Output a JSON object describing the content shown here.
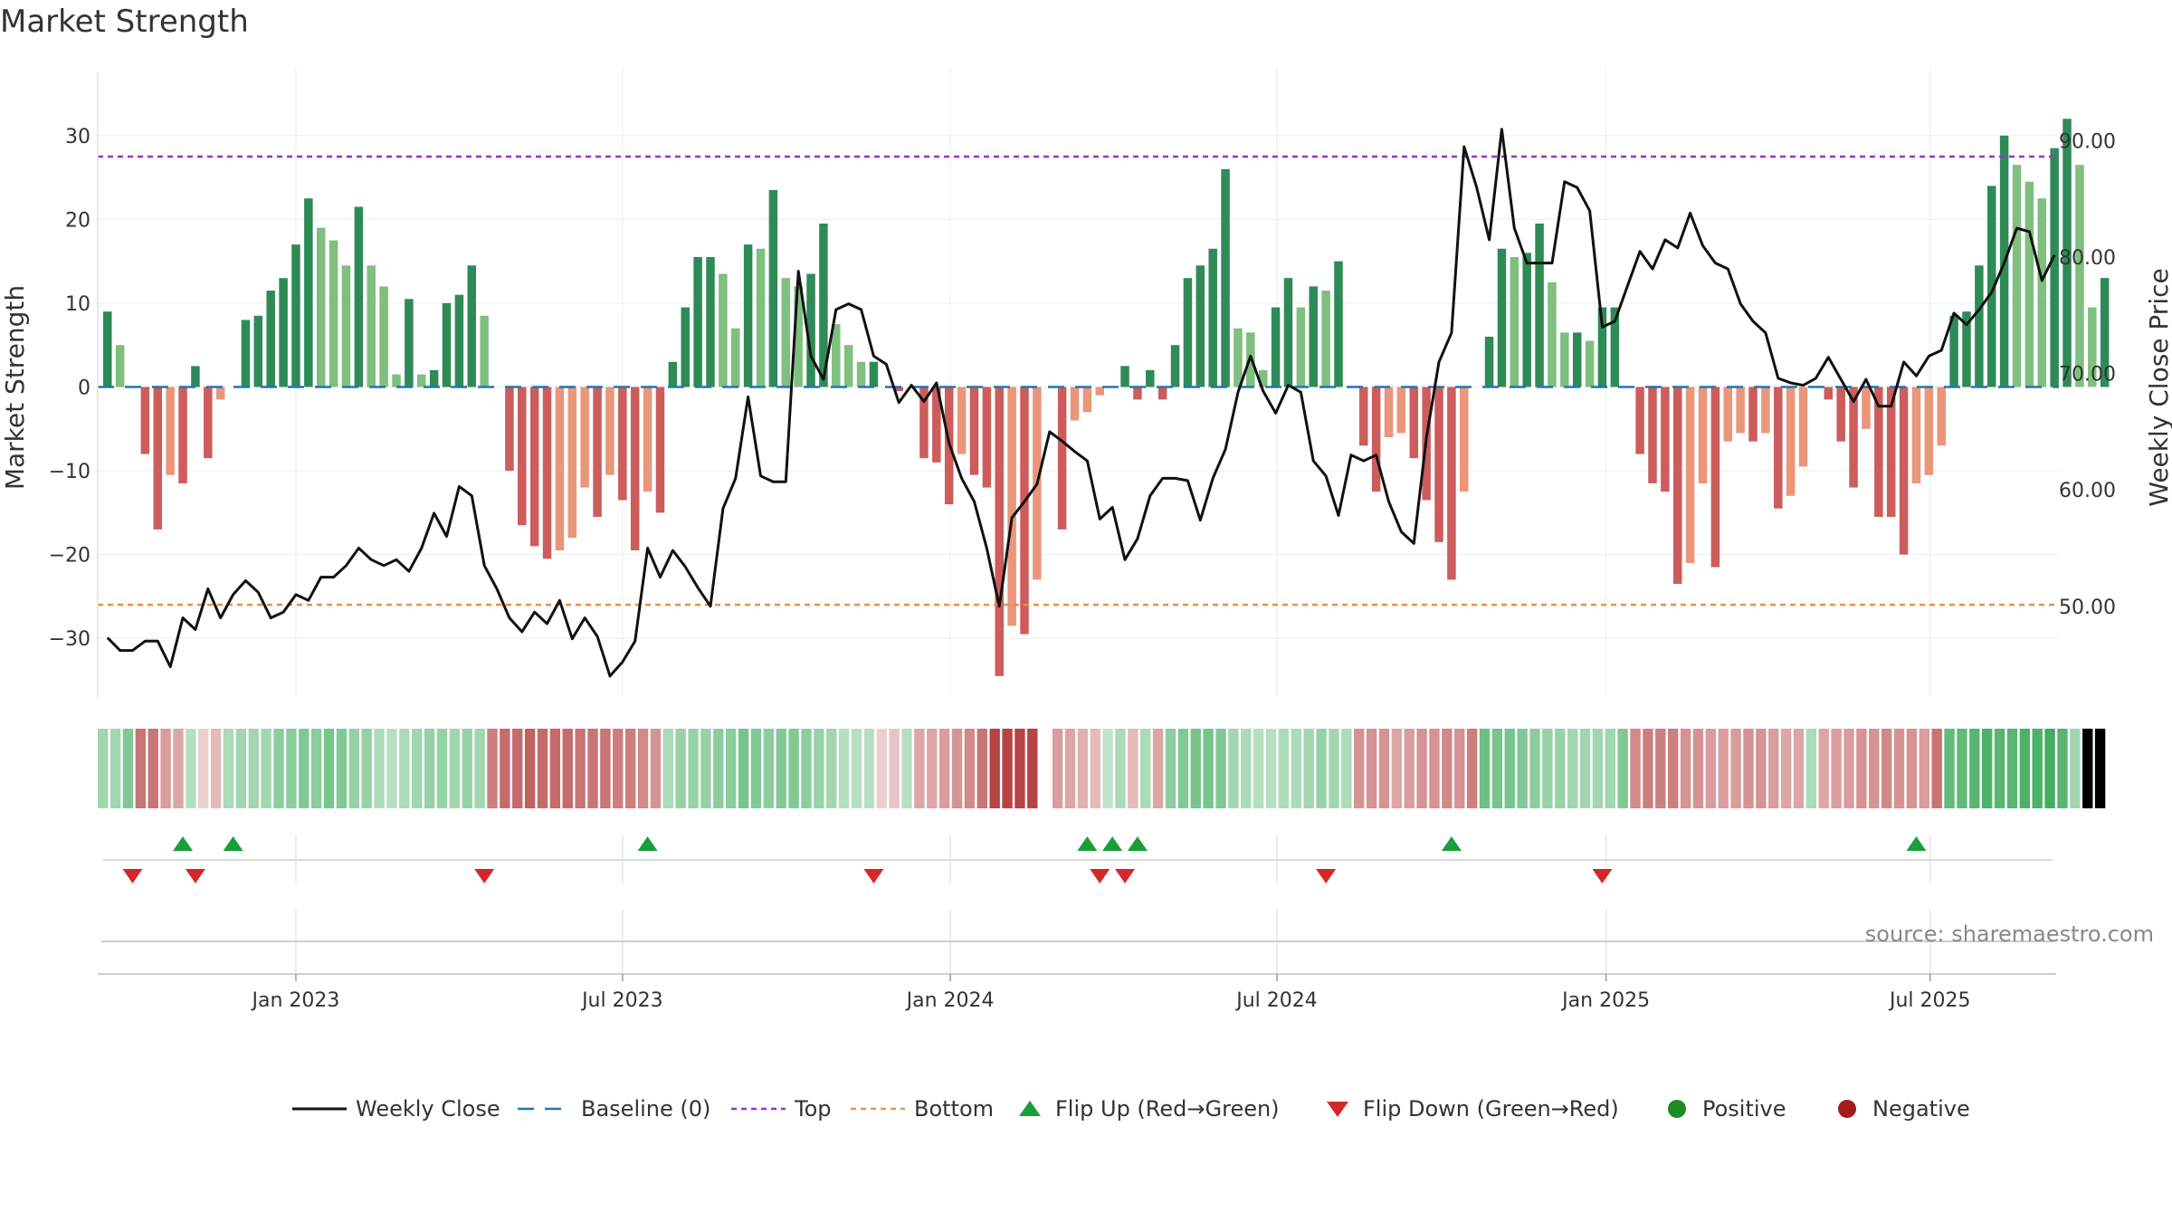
{
  "title": "Market Strength",
  "source": "source: sharemaestro.com",
  "colors": {
    "pos_strong": "#2e8b57",
    "pos_weak": "#7fbf7f",
    "neg_strong": "#cd5c5c",
    "neg_weak": "#e9967a",
    "line": "#111111",
    "baseline": "#1f77b4",
    "top": "#9932cc",
    "bottom": "#e8924a",
    "flip_up": "#1a9e3a",
    "flip_down": "#d62728",
    "positive": "#1e8c24",
    "negative": "#a31c1c"
  },
  "chart_data": {
    "type": "bar",
    "title": "Market Strength",
    "ylabel": "Market Strength",
    "y2label": "Weekly Close Price",
    "ylim": [
      -37,
      37
    ],
    "y2lim": [
      42.2,
      95.5
    ],
    "yticks": [
      -30,
      -20,
      -10,
      0,
      10,
      20,
      30
    ],
    "yticklabels": [
      "−30",
      "−20",
      "−10",
      "0",
      "10",
      "20",
      "30"
    ],
    "y2ticks": [
      50,
      60,
      70,
      80,
      90
    ],
    "y2ticklabels": [
      "50.00",
      "60.00",
      "70.00",
      "80.00",
      "90.00"
    ],
    "top_level": 27.5,
    "bottom_level": -26,
    "x_start_week": 0,
    "xticks": [
      {
        "label": "Jan 2023",
        "week": 15
      },
      {
        "label": "Jul 2023",
        "week": 41
      },
      {
        "label": "Jan 2024",
        "week": 67.1
      },
      {
        "label": "Jul 2024",
        "week": 93.1
      },
      {
        "label": "Jan 2025",
        "week": 119.3
      },
      {
        "label": "Jul 2025",
        "week": 145.1
      }
    ],
    "strength": [
      9,
      5,
      0,
      -8,
      -17,
      -10.5,
      -11.5,
      2.5,
      -8.5,
      -1.5,
      0,
      8,
      8.5,
      11.5,
      13,
      17,
      22.5,
      19,
      17.5,
      14.5,
      21.5,
      14.5,
      12,
      1.5,
      10.5,
      1.5,
      2,
      10,
      11,
      14.5,
      8.5,
      0,
      -10,
      -16.5,
      -19,
      -20.5,
      -19.5,
      -18,
      -12,
      -15.5,
      -10.5,
      -13.5,
      -19.5,
      -12.5,
      -15,
      3,
      9.5,
      15.5,
      15.5,
      13.5,
      7,
      17,
      16.5,
      23.5,
      13,
      12,
      13.5,
      19.5,
      7.5,
      5,
      3,
      3,
      0,
      -0.5,
      0,
      -8.5,
      -9,
      -14,
      -8,
      -10.5,
      -12,
      -34.5,
      -28.5,
      -29.5,
      -23,
      0,
      -17,
      -4,
      -3,
      -1,
      0,
      2.5,
      -1.5,
      2,
      -1.5,
      5,
      13,
      14.5,
      16.5,
      26,
      7,
      6.5,
      2,
      9.5,
      13,
      9.5,
      12,
      11.5,
      15,
      0,
      -7,
      -12.5,
      -6,
      -5.5,
      -8.5,
      -13.5,
      -18.5,
      -23,
      -12.5,
      0,
      6,
      16.5,
      15.5,
      16,
      19.5,
      12.5,
      6.5,
      6.5,
      5.5,
      9.5,
      9.5,
      0,
      -8,
      -11.5,
      -12.5,
      -23.5,
      -21,
      -11.5,
      -21.5,
      -6.5,
      -5.5,
      -6.5,
      -5.5,
      -14.5,
      -13,
      -9.5,
      0,
      -1.5,
      -6.5,
      -12,
      -5,
      -15.5,
      -15.5,
      -20,
      -11.5,
      -10.5,
      -7,
      8.5,
      9,
      14.5,
      24,
      30,
      26.5,
      24.5,
      22.5,
      28.5,
      32,
      26.5,
      9.5,
      13
    ],
    "weekly_close": [
      47.3,
      46.2,
      46.2,
      47.0,
      47.0,
      44.8,
      49.0,
      48.0,
      51.5,
      49.0,
      51.0,
      52.2,
      51.2,
      49.0,
      49.5,
      51.0,
      50.5,
      52.5,
      52.5,
      53.5,
      55.0,
      54.0,
      53.5,
      54.0,
      53.0,
      55.0,
      58.0,
      56.0,
      60.3,
      59.5,
      53.5,
      51.5,
      49.0,
      47.8,
      49.5,
      48.5,
      50.5,
      47.2,
      49.0,
      47.4,
      44.0,
      45.2,
      47.0,
      55.0,
      52.5,
      54.8,
      53.4,
      51.6,
      50.0,
      58.4,
      61.0,
      68.0,
      61.2,
      60.7,
      60.7,
      78.8,
      71.5,
      69.5,
      75.5,
      76.0,
      75.5,
      71.5,
      70.8,
      67.5,
      69.0,
      67.6,
      69.2,
      64.0,
      61.0,
      59.0,
      55.0,
      50.0,
      57.6,
      59.0,
      60.5,
      65.0,
      64.2,
      63.3,
      62.5,
      57.5,
      58.5,
      54.0,
      55.8,
      59.5,
      61.0,
      61.0,
      60.8,
      57.4,
      61.0,
      63.5,
      68.4,
      71.5,
      68.5,
      66.6,
      69.0,
      68.4,
      62.5,
      61.2,
      57.8,
      63.0,
      62.5,
      63.0,
      59.0,
      56.4,
      55.4,
      64.5,
      71.0,
      73.5,
      89.5,
      86.0,
      81.5,
      91.0,
      82.5,
      79.5,
      79.5,
      79.5,
      86.5,
      86.0,
      84.0,
      74.0,
      74.5,
      77.5,
      80.5,
      79.0,
      81.5,
      80.8,
      83.8,
      81.0,
      79.5,
      79.0,
      76.0,
      74.5,
      73.5,
      69.6,
      69.2,
      69.0,
      69.6,
      71.4,
      69.5,
      67.6,
      69.5,
      67.2,
      67.2,
      71.0,
      69.8,
      71.5,
      72.0,
      75.2,
      74.2,
      75.5,
      77.0,
      79.5,
      82.5,
      82.2,
      78.0,
      80.2
    ],
    "shading": [
      0.45,
      0.45,
      0.6,
      0.7,
      0.7,
      0.5,
      0.45,
      0.35,
      0.25,
      0.35,
      0.4,
      0.45,
      0.45,
      0.45,
      0.55,
      0.55,
      0.6,
      0.55,
      0.65,
      0.6,
      0.5,
      0.5,
      0.4,
      0.35,
      0.4,
      0.45,
      0.5,
      0.5,
      0.45,
      0.5,
      0.45,
      0.65,
      0.75,
      0.75,
      0.8,
      0.75,
      0.75,
      0.75,
      0.7,
      0.7,
      0.7,
      0.65,
      0.65,
      0.6,
      0.55,
      0.4,
      0.5,
      0.5,
      0.5,
      0.55,
      0.55,
      0.65,
      0.6,
      0.55,
      0.6,
      0.6,
      0.55,
      0.5,
      0.45,
      0.35,
      0.35,
      0.35,
      0.25,
      0.3,
      0.35,
      0.45,
      0.45,
      0.5,
      0.55,
      0.6,
      0.7,
      0.95,
      0.95,
      0.95,
      0.95,
      0.0,
      0.5,
      0.45,
      0.4,
      0.35,
      0.3,
      0.4,
      0.35,
      0.4,
      0.45,
      0.55,
      0.6,
      0.65,
      0.65,
      0.6,
      0.45,
      0.4,
      0.35,
      0.35,
      0.4,
      0.4,
      0.45,
      0.5,
      0.45,
      0.4,
      0.55,
      0.55,
      0.55,
      0.45,
      0.5,
      0.55,
      0.55,
      0.6,
      0.55,
      0.65,
      0.7,
      0.65,
      0.65,
      0.6,
      0.55,
      0.5,
      0.5,
      0.45,
      0.45,
      0.45,
      0.45,
      0.6,
      0.6,
      0.65,
      0.65,
      0.65,
      0.55,
      0.55,
      0.5,
      0.5,
      0.5,
      0.55,
      0.55,
      0.5,
      0.45,
      0.45,
      0.4,
      0.45,
      0.5,
      0.5,
      0.55,
      0.55,
      0.6,
      0.55,
      0.55,
      0.5,
      0.7,
      0.75,
      0.75,
      0.8,
      0.85,
      0.8,
      0.8,
      0.85,
      0.85,
      0.9,
      0.8,
      0.45
    ],
    "flip_up_weeks": [
      6,
      10,
      43,
      78,
      80,
      82,
      107,
      144
    ],
    "flip_down_weeks": [
      2,
      7,
      30,
      61,
      79,
      81,
      97,
      119
    ],
    "legend": [
      {
        "key": "line",
        "label": "Weekly Close"
      },
      {
        "key": "baseline",
        "label": "Baseline (0)"
      },
      {
        "key": "top",
        "label": "Top"
      },
      {
        "key": "bottom",
        "label": "Bottom"
      },
      {
        "key": "flip_up",
        "label": "Flip Up (Red→Green)"
      },
      {
        "key": "flip_down",
        "label": "Flip Down (Green→Red)"
      },
      {
        "key": "positive",
        "label": "Positive"
      },
      {
        "key": "negative",
        "label": "Negative"
      }
    ]
  }
}
